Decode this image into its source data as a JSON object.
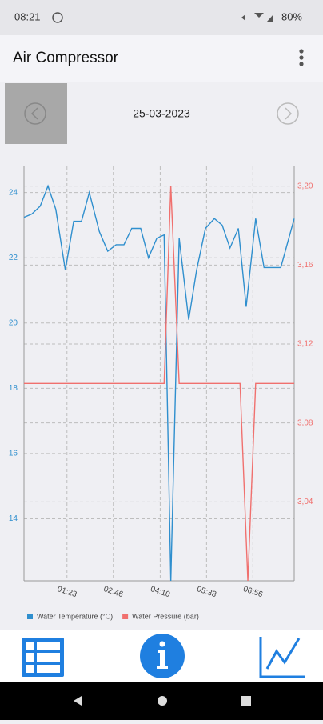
{
  "status_bar": {
    "time": "08:21",
    "battery": "80%"
  },
  "app_bar": {
    "title": "Air Compressor"
  },
  "date_nav": {
    "date": "25-03-2023"
  },
  "chart_data": {
    "type": "line",
    "xlim": [
      6,
      490
    ],
    "xticks": [
      {
        "value": 83,
        "label": "01:23"
      },
      {
        "value": 166,
        "label": "02:46"
      },
      {
        "value": 250,
        "label": "04:10"
      },
      {
        "value": 333,
        "label": "05:33"
      },
      {
        "value": 416,
        "label": "06:56"
      }
    ],
    "ylim": [
      12.1,
      24.8
    ],
    "yticks": [
      14,
      16,
      18,
      20,
      22,
      24
    ],
    "y2lim": [
      3.0,
      3.21
    ],
    "y2ticks": [
      {
        "value": 3.04,
        "label": "3,04"
      },
      {
        "value": 3.08,
        "label": "3,08"
      },
      {
        "value": 3.12,
        "label": "3,12"
      },
      {
        "value": 3.16,
        "label": "3,16"
      },
      {
        "value": 3.2,
        "label": "3,20"
      }
    ],
    "grid": true,
    "legend": "bottom-left",
    "series": [
      {
        "name": "Water Temperature (°C)",
        "color": "#2f8fce",
        "x": [
          6,
          20,
          35,
          49,
          63,
          80,
          95,
          109,
          123,
          141,
          156,
          171,
          185,
          199,
          215,
          229,
          244,
          257,
          269,
          284,
          301,
          315,
          331,
          347,
          361,
          375,
          390,
          404,
          421,
          436,
          450,
          466,
          490
        ],
        "values": [
          23.24,
          23.34,
          23.58,
          24.2,
          23.48,
          21.62,
          23.12,
          23.12,
          24.0,
          22.8,
          22.2,
          22.4,
          22.4,
          22.9,
          22.9,
          22.0,
          22.6,
          22.7,
          12.1,
          22.6,
          20.1,
          21.6,
          22.9,
          23.2,
          23.0,
          22.3,
          22.9,
          20.5,
          23.2,
          21.7,
          21.7,
          21.7,
          23.2
        ]
      },
      {
        "name": "Water Pressure (bar)",
        "color": "#f0706e",
        "axis": "y2",
        "x": [
          6,
          257,
          269,
          284,
          393,
          407,
          421,
          490
        ],
        "values": [
          3.1,
          3.1,
          3.2,
          3.1,
          3.1,
          3.0,
          3.1,
          3.1
        ]
      }
    ]
  }
}
